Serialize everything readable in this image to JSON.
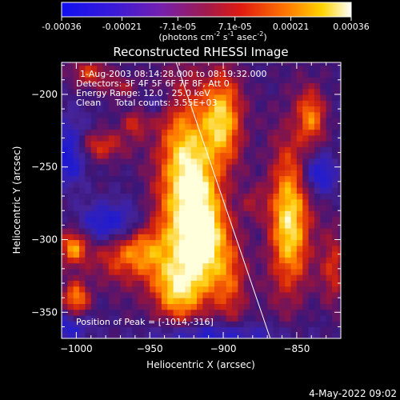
{
  "colorbar": {
    "ticks": [
      "-0.00036",
      "-0.00021",
      "-7.1e-05",
      "7.1e-05",
      "0.00021",
      "0.00036"
    ],
    "units_main": "(photons cm",
    "units_exp1": "-2",
    "units_mid": " s",
    "units_exp2": "-1",
    "units_end": " asec",
    "units_exp3": "-2",
    "units_close": ")"
  },
  "chart_data": {
    "type": "heatmap",
    "title": "Reconstructed RHESSI Image",
    "xlabel": "Heliocentric X (arcsec)",
    "ylabel": "Heliocentric Y (arcsec)",
    "xlim": [
      -1010,
      -820
    ],
    "ylim": [
      -368,
      -178
    ],
    "x_ticks": [
      -1000,
      -950,
      -900,
      -850
    ],
    "y_ticks": [
      -200,
      -250,
      -300,
      -350
    ],
    "x_tick_labels": [
      "−1000",
      "−950",
      "−900",
      "−850"
    ],
    "y_tick_labels": [
      "−200",
      "−250",
      "−300",
      "−350"
    ],
    "value_range": [
      -0.00036,
      0.00036
    ],
    "colormap": "rhessi (blue-purple-red-orange-yellow-white)",
    "limb_line": [
      [
        -932,
        -178
      ],
      [
        -868,
        -368
      ]
    ],
    "peak": [
      -1014,
      -316
    ],
    "info_lines": [
      "1-Aug-2003 08:14:28.000 to 08:19:32.000",
      "Detectors: 3F 4F 5F 6F 7F 8F, Att 0",
      "Energy Range: 12.0 - 25.0 keV",
      "Clean     Total counts: 3.55E+03"
    ],
    "peak_label": "Position of Peak = [-1014,-316]"
  },
  "footer": {
    "date": "4-May-2022 09:02"
  }
}
